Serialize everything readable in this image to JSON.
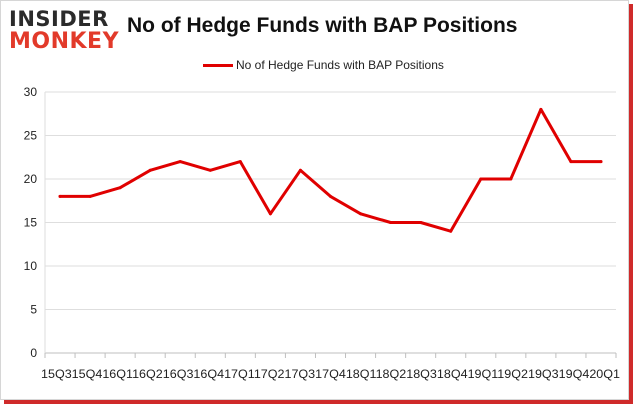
{
  "brand": {
    "line1": "INSIDER",
    "line2": "MONKEY",
    "accent": "#e23a2a"
  },
  "chart_data": {
    "type": "line",
    "title": "No of Hedge Funds with BAP Positions",
    "legend_position": "top",
    "grid": {
      "y": true,
      "x": false
    },
    "xlabel": "",
    "ylabel": "",
    "ylim": [
      0,
      30
    ],
    "yticks": [
      0,
      5,
      10,
      15,
      20,
      25,
      30
    ],
    "categories": [
      "15Q3",
      "15Q4",
      "16Q1",
      "16Q2",
      "16Q3",
      "16Q4",
      "17Q1",
      "17Q2",
      "17Q3",
      "17Q4",
      "18Q1",
      "18Q2",
      "18Q3",
      "18Q4",
      "19Q1",
      "19Q2",
      "19Q3",
      "19Q4",
      "20Q1"
    ],
    "x_tick_text": "15Q315Q416Q116Q216Q316Q417Q117Q217Q317Q418Q118Q218Q318Q419Q119Q219Q319Q420Q1",
    "series": [
      {
        "name": "No of Hedge Funds with BAP Positions",
        "color": "#e00000",
        "values": [
          18,
          18,
          19,
          21,
          22,
          21,
          22,
          16,
          21,
          18,
          16,
          15,
          15,
          14,
          20,
          20,
          28,
          22,
          22
        ]
      }
    ]
  }
}
